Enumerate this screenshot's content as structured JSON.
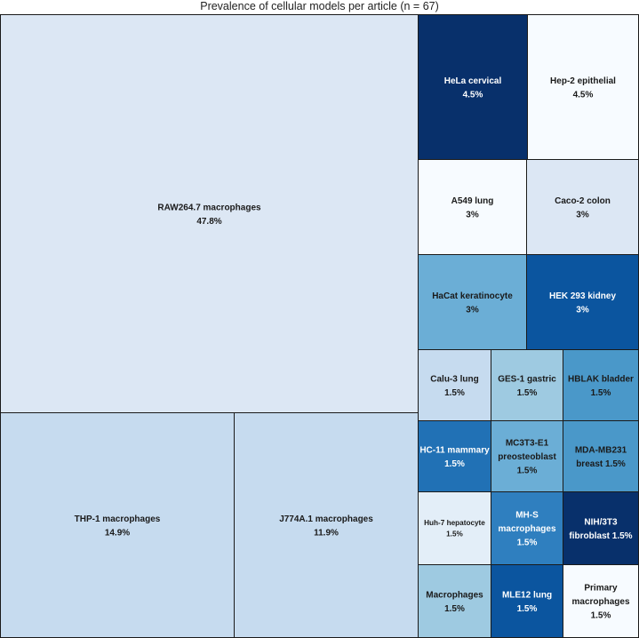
{
  "chart_data": {
    "type": "treemap",
    "title": "Prevalence of cellular models per article (n = 67)",
    "cells": [
      {
        "name": "RAW264.7 macrophages",
        "value": "47.8%",
        "color": "#dce7f4",
        "text_color": "#1a1a1a",
        "lines": [
          "RAW264.7 macrophages",
          "47.8%"
        ]
      },
      {
        "name": "THP-1 macrophages",
        "value": "14.9%",
        "color": "#c6dbef",
        "text_color": "#1a1a1a",
        "lines": [
          "THP-1 macrophages",
          "14.9%"
        ]
      },
      {
        "name": "J774A.1 macrophages",
        "value": "11.9%",
        "color": "#c6dbef",
        "text_color": "#1a1a1a",
        "lines": [
          "J774A.1 macrophages",
          "11.9%"
        ]
      },
      {
        "name": "HeLa cervical",
        "value": "4.5%",
        "color": "#08306b",
        "text_color": "#ffffff",
        "lines": [
          "HeLa cervical",
          "4.5%"
        ]
      },
      {
        "name": "Hep-2 epithelial",
        "value": "4.5%",
        "color": "#f7fbff",
        "text_color": "#1a1a1a",
        "lines": [
          "Hep-2 epithelial",
          "4.5%"
        ]
      },
      {
        "name": "A549 lung",
        "value": "3%",
        "color": "#f7fbff",
        "text_color": "#1a1a1a",
        "lines": [
          "A549 lung",
          "3%"
        ]
      },
      {
        "name": "Caco-2 colon",
        "value": "3%",
        "color": "#dce7f4",
        "text_color": "#1a1a1a",
        "lines": [
          "Caco-2 colon",
          "3%"
        ]
      },
      {
        "name": "HaCat keratinocyte",
        "value": "3%",
        "color": "#6baed6",
        "text_color": "#1a1a1a",
        "lines": [
          "HaCat keratinocyte",
          "3%"
        ]
      },
      {
        "name": "HEK 293 kidney",
        "value": "3%",
        "color": "#0b559f",
        "text_color": "#ffffff",
        "lines": [
          "HEK 293 kidney",
          "3%"
        ]
      },
      {
        "name": "Calu-3 lung",
        "value": "1.5%",
        "color": "#c6dbef",
        "text_color": "#1a1a1a",
        "lines": [
          "Calu-3 lung",
          "1.5%"
        ]
      },
      {
        "name": "GES-1 gastric",
        "value": "1.5%",
        "color": "#9ecae1",
        "text_color": "#1a1a1a",
        "lines": [
          "GES-1 gastric",
          "1.5%"
        ]
      },
      {
        "name": "HBLAK bladder",
        "value": "1.5%",
        "color": "#4a98c9",
        "text_color": "#1a1a1a",
        "lines": [
          "HBLAK bladder",
          "1.5%"
        ]
      },
      {
        "name": "HC-11 mammary",
        "value": "1.5%",
        "color": "#2171b5",
        "text_color": "#ffffff",
        "lines": [
          "HC-11 mammary",
          "1.5%"
        ]
      },
      {
        "name": "MC3T3-E1 preosteoblast",
        "value": "1.5%",
        "color": "#6baed6",
        "text_color": "#1a1a1a",
        "lines": [
          "MC3T3-E1",
          "preosteoblast",
          "1.5%"
        ]
      },
      {
        "name": "MDA-MB231 breast",
        "value": "1.5%",
        "color": "#4a98c9",
        "text_color": "#1a1a1a",
        "lines": [
          "MDA-MB231",
          "breast 1.5%"
        ]
      },
      {
        "name": "Huh-7 hepatocyte",
        "value": "1.5%",
        "color": "#e3eef8",
        "text_color": "#1a1a1a",
        "lines": [
          "Huh-7 hepatocyte",
          "1.5%"
        ]
      },
      {
        "name": "MH-S macrophages",
        "value": "1.5%",
        "color": "#2f7fbf",
        "text_color": "#ffffff",
        "lines": [
          "MH-S",
          "macrophages",
          "1.5%"
        ]
      },
      {
        "name": "NIH/3T3 fibroblast",
        "value": "1.5%",
        "color": "#08306b",
        "text_color": "#ffffff",
        "lines": [
          "NIH/3T3",
          "fibroblast 1.5%"
        ]
      },
      {
        "name": "Macrophages",
        "value": "1.5%",
        "color": "#9ecae1",
        "text_color": "#1a1a1a",
        "lines": [
          "Macrophages",
          "1.5%"
        ]
      },
      {
        "name": "MLE12 lung",
        "value": "1.5%",
        "color": "#0b559f",
        "text_color": "#ffffff",
        "lines": [
          "MLE12 lung",
          "1.5%"
        ]
      },
      {
        "name": "Primary macrophages",
        "value": "1.5%",
        "color": "#f7fbff",
        "text_color": "#1a1a1a",
        "lines": [
          "Primary",
          "macrophages",
          "1.5%"
        ]
      }
    ]
  }
}
